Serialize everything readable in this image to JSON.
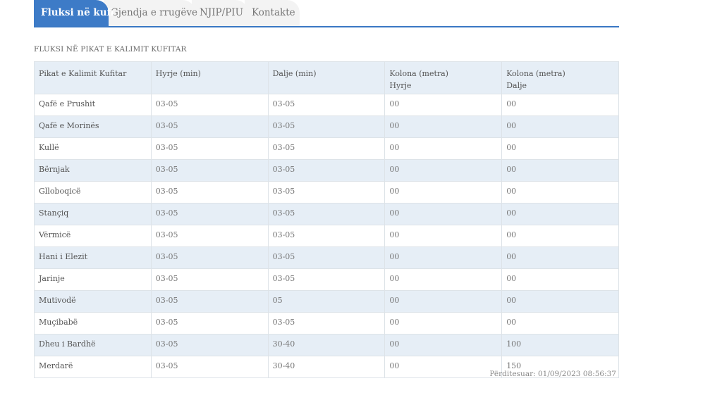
{
  "tabs": [
    {
      "label": "Fluksi në kufi",
      "active": true
    },
    {
      "label": "Gjendja e rrugëve",
      "active": false
    },
    {
      "label": "NJIP/PIU",
      "active": false
    },
    {
      "label": "Kontakte",
      "active": false
    }
  ],
  "section_title": "FLUKSI NË PIKAT E KALIMIT KUFITAR",
  "table": {
    "headers": {
      "name": "Pikat e Kalimit Kufitar",
      "entry": "Hyrje (min)",
      "exit": "Dalje (min)",
      "queue_entry_1": "Kolona (metra)",
      "queue_entry_2": "Hyrje",
      "queue_exit_1": "Kolona (metra)",
      "queue_exit_2": "Dalje"
    },
    "rows": [
      {
        "name": "Qafë e Prushit",
        "entry": "03-05",
        "exit": "03-05",
        "queue_entry": "00",
        "queue_exit": "00"
      },
      {
        "name": "Qafë e Morinës",
        "entry": "03-05",
        "exit": "03-05",
        "queue_entry": "00",
        "queue_exit": "00"
      },
      {
        "name": "Kullë",
        "entry": "03-05",
        "exit": "03-05",
        "queue_entry": "00",
        "queue_exit": "00"
      },
      {
        "name": "Bërnjak",
        "entry": "03-05",
        "exit": "03-05",
        "queue_entry": "00",
        "queue_exit": "00"
      },
      {
        "name": "Glloboqicë",
        "entry": "03-05",
        "exit": "03-05",
        "queue_entry": "00",
        "queue_exit": "00"
      },
      {
        "name": "Stançiq",
        "entry": "03-05",
        "exit": "03-05",
        "queue_entry": "00",
        "queue_exit": "00"
      },
      {
        "name": "Vërmicë",
        "entry": "03-05",
        "exit": "03-05",
        "queue_entry": "00",
        "queue_exit": "00"
      },
      {
        "name": "Hani i Elezit",
        "entry": "03-05",
        "exit": "03-05",
        "queue_entry": "00",
        "queue_exit": "00"
      },
      {
        "name": "Jarinje",
        "entry": "03-05",
        "exit": "03-05",
        "queue_entry": "00",
        "queue_exit": "00"
      },
      {
        "name": "Mutivodë",
        "entry": "03-05",
        "exit": "05",
        "queue_entry": "00",
        "queue_exit": "00"
      },
      {
        "name": "Muçibabë",
        "entry": "03-05",
        "exit": "03-05",
        "queue_entry": "00",
        "queue_exit": "00"
      },
      {
        "name": "Dheu i Bardhë",
        "entry": "03-05",
        "exit": "30-40",
        "queue_entry": "00",
        "queue_exit": "100"
      },
      {
        "name": "Merdarë",
        "entry": "03-05",
        "exit": "30-40",
        "queue_entry": "00",
        "queue_exit": "150"
      }
    ]
  },
  "updated": "Përditesuar: 01/09/2023 08:56:37",
  "colors": {
    "accent": "#3d7bc7",
    "row_alt": "#e6eef6",
    "border": "#dde3e8"
  }
}
